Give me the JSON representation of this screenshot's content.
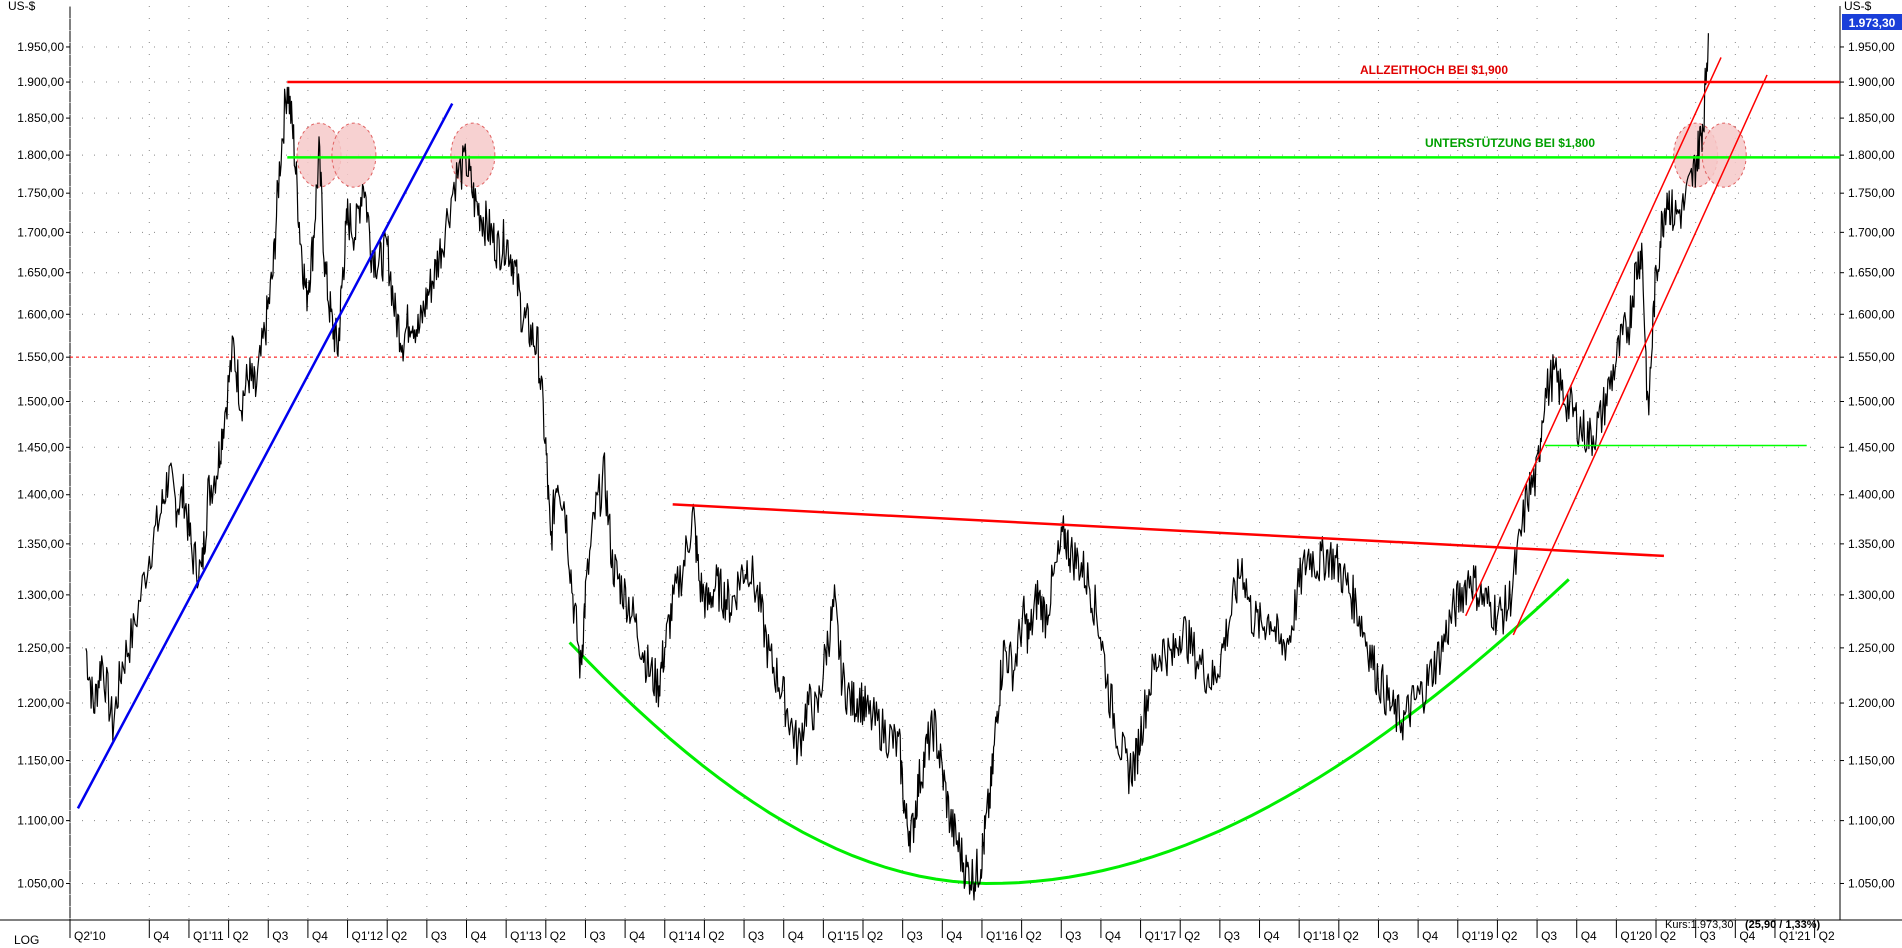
{
  "chart_data": {
    "type": "line",
    "scale": "log",
    "y_unit_left": "US-$",
    "y_unit_right": "US-$",
    "scale_label": "LOG",
    "ylim": [
      1022,
      2010
    ],
    "y_ticks": [
      "1.050,00",
      "1.100,00",
      "1.150,00",
      "1.200,00",
      "1.250,00",
      "1.300,00",
      "1.350,00",
      "1.400,00",
      "1.450,00",
      "1.500,00",
      "1.550,00",
      "1.600,00",
      "1.650,00",
      "1.700,00",
      "1.750,00",
      "1.800,00",
      "1.850,00",
      "1.900,00",
      "1.950,00"
    ],
    "y_tick_values": [
      1050,
      1100,
      1150,
      1200,
      1250,
      1300,
      1350,
      1400,
      1450,
      1500,
      1550,
      1600,
      1650,
      1700,
      1750,
      1800,
      1850,
      1900,
      1950
    ],
    "x_labels": [
      "Q2'10",
      "Q4",
      "Q1'11",
      "Q2",
      "Q3",
      "Q4",
      "Q1'12",
      "Q2",
      "Q3",
      "Q4",
      "Q1'13",
      "Q2",
      "Q3",
      "Q4",
      "Q1'14",
      "Q2",
      "Q3",
      "Q4",
      "Q1'15",
      "Q2",
      "Q3",
      "Q4",
      "Q1'16",
      "Q2",
      "Q3",
      "Q4",
      "Q1'17",
      "Q2",
      "Q3",
      "Q4",
      "Q1'18",
      "Q2",
      "Q3",
      "Q4",
      "Q1'19",
      "Q2",
      "Q3",
      "Q4",
      "Q1'20",
      "Q2",
      "Q3",
      "Q4",
      "Q1'21",
      "Q2"
    ],
    "x_label_times": [
      2010.25,
      2010.75,
      2011.0,
      2011.25,
      2011.5,
      2011.75,
      2012.0,
      2012.25,
      2012.5,
      2012.75,
      2013.0,
      2013.25,
      2013.5,
      2013.75,
      2014.0,
      2014.25,
      2014.5,
      2014.75,
      2015.0,
      2015.25,
      2015.5,
      2015.75,
      2016.0,
      2016.25,
      2016.5,
      2016.75,
      2017.0,
      2017.25,
      2017.5,
      2017.75,
      2018.0,
      2018.25,
      2018.5,
      2018.75,
      2019.0,
      2019.25,
      2019.5,
      2019.75,
      2020.0,
      2020.25,
      2020.5,
      2020.75,
      2021.0,
      2021.25
    ],
    "grid": true,
    "series": [
      {
        "color": "#000000",
        "points": [
          [
            2010.35,
            1250
          ],
          [
            2010.4,
            1195
          ],
          [
            2010.45,
            1240
          ],
          [
            2010.52,
            1180
          ],
          [
            2010.58,
            1235
          ],
          [
            2010.65,
            1265
          ],
          [
            2010.75,
            1340
          ],
          [
            2010.82,
            1380
          ],
          [
            2010.87,
            1420
          ],
          [
            2010.92,
            1390
          ],
          [
            2010.97,
            1400
          ],
          [
            2011.02,
            1340
          ],
          [
            2011.08,
            1320
          ],
          [
            2011.12,
            1400
          ],
          [
            2011.18,
            1430
          ],
          [
            2011.22,
            1480
          ],
          [
            2011.28,
            1560
          ],
          [
            2011.33,
            1500
          ],
          [
            2011.38,
            1530
          ],
          [
            2011.42,
            1510
          ],
          [
            2011.48,
            1580
          ],
          [
            2011.53,
            1650
          ],
          [
            2011.57,
            1780
          ],
          [
            2011.62,
            1900
          ],
          [
            2011.66,
            1820
          ],
          [
            2011.7,
            1700
          ],
          [
            2011.74,
            1620
          ],
          [
            2011.78,
            1680
          ],
          [
            2011.82,
            1800
          ],
          [
            2011.86,
            1650
          ],
          [
            2011.9,
            1590
          ],
          [
            2011.94,
            1560
          ],
          [
            2011.97,
            1650
          ],
          [
            2012.0,
            1720
          ],
          [
            2012.05,
            1700
          ],
          [
            2012.1,
            1770
          ],
          [
            2012.15,
            1680
          ],
          [
            2012.2,
            1660
          ],
          [
            2012.25,
            1680
          ],
          [
            2012.3,
            1600
          ],
          [
            2012.35,
            1570
          ],
          [
            2012.4,
            1600
          ],
          [
            2012.45,
            1580
          ],
          [
            2012.5,
            1620
          ],
          [
            2012.55,
            1650
          ],
          [
            2012.6,
            1690
          ],
          [
            2012.68,
            1770
          ],
          [
            2012.75,
            1790
          ],
          [
            2012.8,
            1740
          ],
          [
            2012.85,
            1720
          ],
          [
            2012.9,
            1700
          ],
          [
            2012.95,
            1680
          ],
          [
            2013.0,
            1690
          ],
          [
            2013.05,
            1660
          ],
          [
            2013.1,
            1600
          ],
          [
            2013.15,
            1580
          ],
          [
            2013.2,
            1560
          ],
          [
            2013.25,
            1450
          ],
          [
            2013.28,
            1350
          ],
          [
            2013.32,
            1420
          ],
          [
            2013.37,
            1390
          ],
          [
            2013.42,
            1300
          ],
          [
            2013.47,
            1230
          ],
          [
            2013.5,
            1300
          ],
          [
            2013.56,
            1380
          ],
          [
            2013.62,
            1420
          ],
          [
            2013.67,
            1330
          ],
          [
            2013.72,
            1310
          ],
          [
            2013.78,
            1290
          ],
          [
            2013.84,
            1260
          ],
          [
            2013.9,
            1230
          ],
          [
            2013.96,
            1215
          ],
          [
            2014.0,
            1250
          ],
          [
            2014.05,
            1290
          ],
          [
            2014.12,
            1330
          ],
          [
            2014.18,
            1380
          ],
          [
            2014.22,
            1310
          ],
          [
            2014.27,
            1290
          ],
          [
            2014.32,
            1310
          ],
          [
            2014.37,
            1300
          ],
          [
            2014.42,
            1290
          ],
          [
            2014.48,
            1320
          ],
          [
            2014.53,
            1330
          ],
          [
            2014.6,
            1290
          ],
          [
            2014.66,
            1240
          ],
          [
            2014.72,
            1220
          ],
          [
            2014.78,
            1190
          ],
          [
            2014.84,
            1160
          ],
          [
            2014.9,
            1200
          ],
          [
            2014.96,
            1190
          ],
          [
            2015.02,
            1250
          ],
          [
            2015.07,
            1290
          ],
          [
            2015.12,
            1220
          ],
          [
            2015.18,
            1200
          ],
          [
            2015.23,
            1205
          ],
          [
            2015.28,
            1190
          ],
          [
            2015.35,
            1180
          ],
          [
            2015.42,
            1170
          ],
          [
            2015.48,
            1160
          ],
          [
            2015.52,
            1100
          ],
          [
            2015.56,
            1090
          ],
          [
            2015.6,
            1130
          ],
          [
            2015.65,
            1160
          ],
          [
            2015.7,
            1180
          ],
          [
            2015.75,
            1140
          ],
          [
            2015.8,
            1100
          ],
          [
            2015.85,
            1080
          ],
          [
            2015.9,
            1060
          ],
          [
            2015.95,
            1055
          ],
          [
            2015.99,
            1065
          ],
          [
            2016.02,
            1090
          ],
          [
            2016.06,
            1130
          ],
          [
            2016.1,
            1200
          ],
          [
            2016.14,
            1250
          ],
          [
            2016.2,
            1230
          ],
          [
            2016.26,
            1280
          ],
          [
            2016.3,
            1260
          ],
          [
            2016.35,
            1300
          ],
          [
            2016.4,
            1280
          ],
          [
            2016.46,
            1320
          ],
          [
            2016.52,
            1360
          ],
          [
            2016.56,
            1340
          ],
          [
            2016.62,
            1330
          ],
          [
            2016.68,
            1310
          ],
          [
            2016.74,
            1270
          ],
          [
            2016.8,
            1210
          ],
          [
            2016.86,
            1170
          ],
          [
            2016.92,
            1140
          ],
          [
            2016.97,
            1150
          ],
          [
            2017.02,
            1190
          ],
          [
            2017.08,
            1230
          ],
          [
            2017.14,
            1250
          ],
          [
            2017.2,
            1240
          ],
          [
            2017.26,
            1270
          ],
          [
            2017.32,
            1250
          ],
          [
            2017.4,
            1230
          ],
          [
            2017.46,
            1220
          ],
          [
            2017.52,
            1250
          ],
          [
            2017.58,
            1290
          ],
          [
            2017.64,
            1330
          ],
          [
            2017.7,
            1280
          ],
          [
            2017.76,
            1270
          ],
          [
            2017.82,
            1280
          ],
          [
            2017.88,
            1250
          ],
          [
            2017.94,
            1260
          ],
          [
            2018.0,
            1310
          ],
          [
            2018.06,
            1340
          ],
          [
            2018.12,
            1330
          ],
          [
            2018.18,
            1340
          ],
          [
            2018.24,
            1330
          ],
          [
            2018.3,
            1310
          ],
          [
            2018.36,
            1290
          ],
          [
            2018.42,
            1260
          ],
          [
            2018.48,
            1230
          ],
          [
            2018.54,
            1210
          ],
          [
            2018.6,
            1190
          ],
          [
            2018.66,
            1185
          ],
          [
            2018.72,
            1200
          ],
          [
            2018.78,
            1210
          ],
          [
            2018.84,
            1230
          ],
          [
            2018.9,
            1250
          ],
          [
            2018.96,
            1280
          ],
          [
            2019.02,
            1300
          ],
          [
            2019.08,
            1320
          ],
          [
            2019.14,
            1300
          ],
          [
            2019.2,
            1290
          ],
          [
            2019.26,
            1280
          ],
          [
            2019.32,
            1290
          ],
          [
            2019.38,
            1340
          ],
          [
            2019.44,
            1400
          ],
          [
            2019.5,
            1420
          ],
          [
            2019.54,
            1500
          ],
          [
            2019.6,
            1530
          ],
          [
            2019.66,
            1510
          ],
          [
            2019.72,
            1490
          ],
          [
            2019.78,
            1470
          ],
          [
            2019.84,
            1460
          ],
          [
            2019.9,
            1480
          ],
          [
            2019.96,
            1520
          ],
          [
            2020.02,
            1560
          ],
          [
            2020.08,
            1590
          ],
          [
            2020.12,
            1650
          ],
          [
            2020.16,
            1680
          ],
          [
            2020.2,
            1480
          ],
          [
            2020.24,
            1620
          ],
          [
            2020.28,
            1700
          ],
          [
            2020.32,
            1750
          ],
          [
            2020.36,
            1720
          ],
          [
            2020.42,
            1730
          ],
          [
            2020.48,
            1770
          ],
          [
            2020.52,
            1810
          ],
          [
            2020.55,
            1850
          ],
          [
            2020.58,
            1970
          ]
        ]
      }
    ],
    "annotations": [
      {
        "text": "ALLZEITHOCH BEI $1,900",
        "color": "#e00000",
        "value": 1900
      },
      {
        "text": "UNTERSTÜTZUNG BEI $1,800",
        "color": "#00a000",
        "value": 1800
      }
    ],
    "last_price_label": "1.973,30",
    "kurs_prefix": "Kurs:1.973,30",
    "kurs_change": "(25,90 / 1,33%)",
    "colors": {
      "price": "#000000",
      "ath_line": "#ff0000",
      "support_line": "#00ff00",
      "uptrend_line": "#0000ee",
      "resistance_line": "#ff0000",
      "channel": "#ff0000",
      "bowl": "#00ee00",
      "dotted_1550": "#ff0000",
      "highlight_fill": "#f6c9c9",
      "last_box": "#1a3fd9"
    }
  }
}
